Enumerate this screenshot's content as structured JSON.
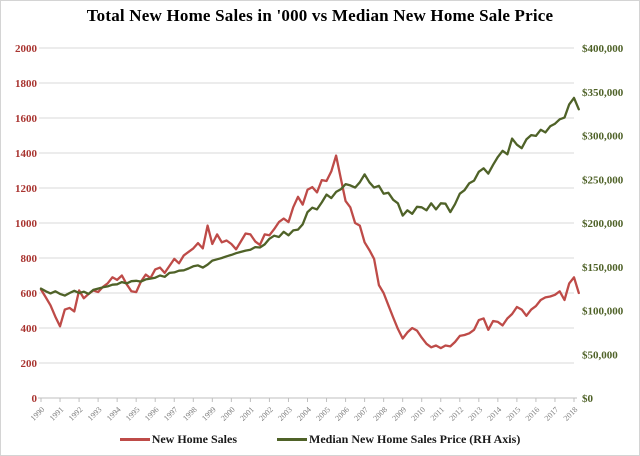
{
  "title": "Total New Home Sales in '000 vs Median New Home Sale Price",
  "colors": {
    "sales_line": "#be4b48",
    "price_line": "#4f6228",
    "sales_axis_text": "#a93531",
    "price_axis_text": "#4f6228",
    "year_text": "#7f7f7f",
    "gridline": "#d9d9d9",
    "axis_line": "#bfbfbf",
    "title_text": "#000000"
  },
  "legend": [
    {
      "label": "New Home Sales"
    },
    {
      "label": "Median New Home Sales Price (RH Axis)"
    }
  ],
  "chart_data": {
    "type": "line",
    "title": "Total New Home Sales in '000 vs Median New Home Sale Price",
    "grid": "horizontal",
    "legend_position": "bottom",
    "x_start": 1990,
    "x_step": 0.25,
    "x_tick_labels": [
      "1990",
      "1991",
      "1992",
      "1993",
      "1994",
      "1995",
      "1996",
      "1997",
      "1998",
      "1999",
      "2000",
      "2001",
      "2002",
      "2003",
      "2004",
      "2005",
      "2006",
      "2007",
      "2008",
      "2009",
      "2010",
      "2011",
      "2012",
      "2013",
      "2014",
      "2015",
      "2016",
      "2017",
      "2018"
    ],
    "left_axis": {
      "min": 0,
      "max": 2000,
      "tick_step": 200,
      "tick_labels": [
        "0",
        "200",
        "400",
        "600",
        "800",
        "1000",
        "1200",
        "1400",
        "1600",
        "1800",
        "2000"
      ]
    },
    "right_axis": {
      "min": 0,
      "max": 400000,
      "tick_step": 50000,
      "tick_labels": [
        "$0",
        "$50,000",
        "$100,000",
        "$150,000",
        "$200,000",
        "$250,000",
        "$300,000",
        "$350,000",
        "$400,000"
      ]
    },
    "series": [
      {
        "name": "New Home Sales",
        "axis": "left",
        "color": "#be4b48",
        "values": [
          620,
          575,
          530,
          465,
          410,
          505,
          515,
          495,
          615,
          570,
          595,
          615,
          605,
          635,
          655,
          690,
          675,
          700,
          650,
          610,
          605,
          665,
          705,
          685,
          735,
          745,
          715,
          755,
          795,
          770,
          815,
          835,
          855,
          885,
          855,
          985,
          880,
          935,
          890,
          900,
          880,
          850,
          895,
          940,
          935,
          895,
          875,
          935,
          930,
          965,
          1005,
          1025,
          1005,
          1090,
          1150,
          1105,
          1190,
          1205,
          1175,
          1245,
          1240,
          1295,
          1385,
          1255,
          1125,
          1090,
          1000,
          985,
          890,
          845,
          795,
          645,
          600,
          530,
          460,
          395,
          340,
          375,
          400,
          385,
          345,
          310,
          290,
          300,
          285,
          300,
          295,
          320,
          355,
          360,
          370,
          390,
          445,
          455,
          390,
          440,
          435,
          415,
          455,
          480,
          520,
          505,
          470,
          505,
          525,
          560,
          575,
          580,
          590,
          610,
          560,
          655,
          690,
          600
        ]
      },
      {
        "name": "Median New Home Sales Price (RH Axis)",
        "axis": "right",
        "color": "#4f6228",
        "values": [
          125000,
          122000,
          119500,
          122000,
          119000,
          117000,
          120000,
          122500,
          120000,
          121500,
          119000,
          123500,
          125000,
          126500,
          127500,
          129500,
          130000,
          132500,
          131000,
          133500,
          134000,
          133000,
          135500,
          136500,
          137500,
          140000,
          138500,
          143000,
          143500,
          145500,
          146000,
          148000,
          150500,
          151500,
          149000,
          152500,
          157000,
          158500,
          160000,
          162000,
          163500,
          165500,
          167000,
          168500,
          169500,
          172500,
          172000,
          175500,
          182000,
          185500,
          184000,
          190000,
          186000,
          191500,
          192500,
          198500,
          212500,
          217500,
          215500,
          223500,
          232500,
          228500,
          235500,
          238500,
          244500,
          243000,
          240500,
          246500,
          255500,
          246500,
          240500,
          242500,
          233500,
          234500,
          226500,
          222500,
          208500,
          214500,
          210500,
          218500,
          218000,
          214500,
          222500,
          215500,
          222500,
          222000,
          212500,
          221500,
          233500,
          237500,
          245500,
          248500,
          258500,
          262500,
          256500,
          266500,
          275500,
          282500,
          278500,
          296500,
          289500,
          285500,
          295500,
          300500,
          299500,
          306500,
          303500,
          310500,
          313500,
          318500,
          320500,
          335500,
          343000,
          330000
        ]
      }
    ]
  }
}
